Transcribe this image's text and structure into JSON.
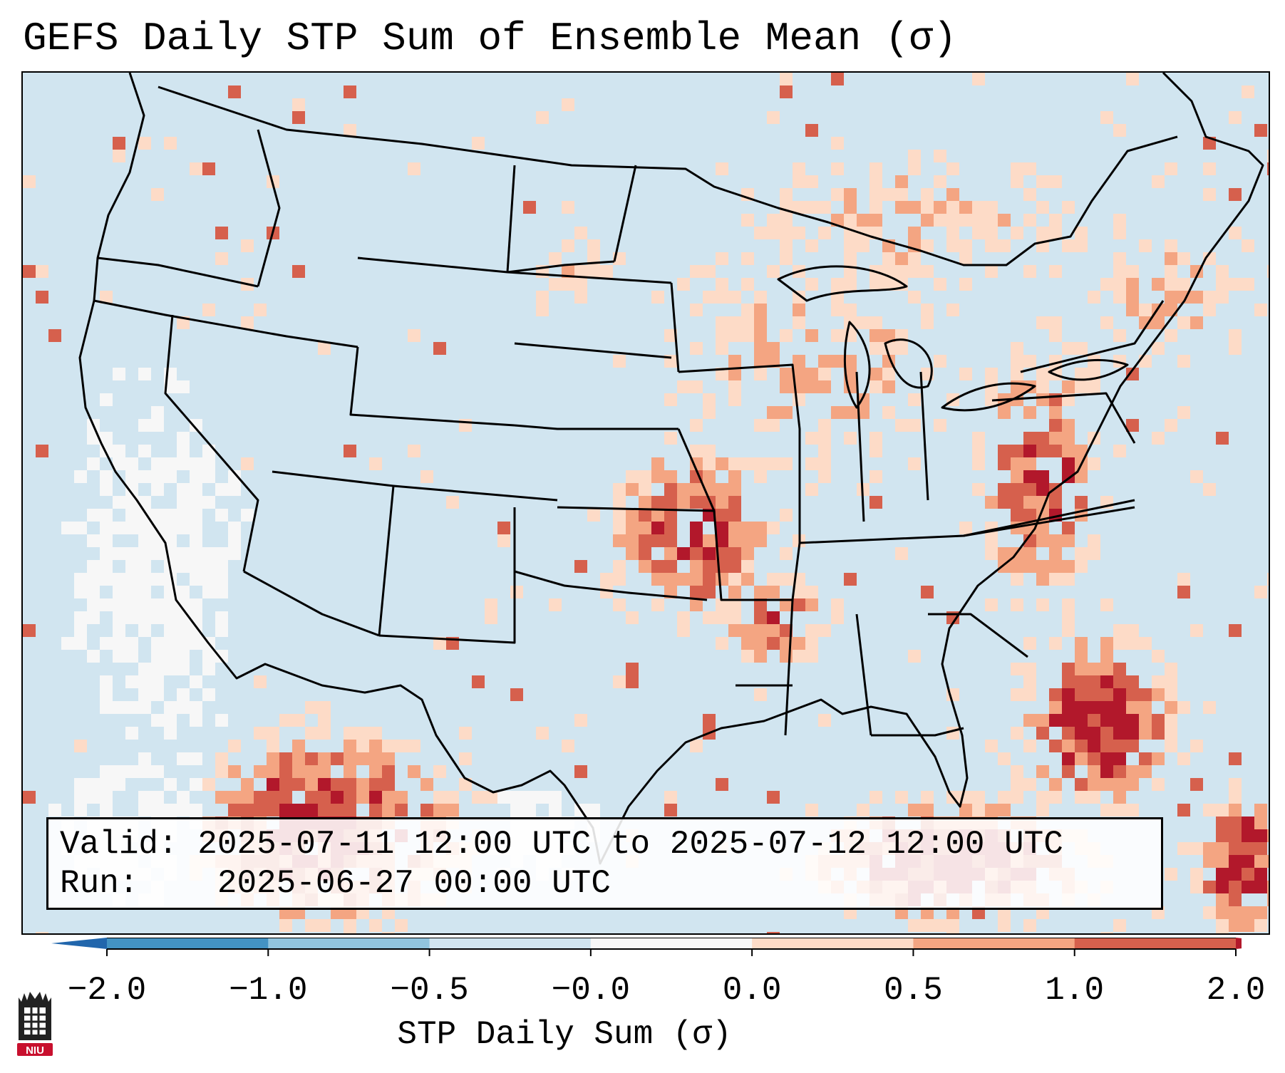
{
  "title": "GEFS Daily STP Sum of Ensemble Mean (σ)",
  "info": {
    "valid_label": "Valid:",
    "valid_value": "2025-07-11 12:00 UTC to 2025-07-12 12:00 UTC",
    "run_label": "Run:",
    "run_value": "2025-06-27 00:00 UTC"
  },
  "colorbar": {
    "label": "STP Daily Sum (σ)",
    "ticks": [
      "−2.0",
      "−1.0",
      "−0.5",
      "−0.0",
      "0.0",
      "0.5",
      "1.0",
      "2.0"
    ],
    "colors": [
      "#4393c3",
      "#92c5de",
      "#d1e5f0",
      "#f7f7f7",
      "#fddbc7",
      "#f4a582",
      "#d6604d"
    ],
    "under_color": "#2166ac",
    "over_color": "#b2182b"
  },
  "map": {
    "background_color": "#d1e5f0",
    "projection": "Lambert Conformal (CONUS)"
  },
  "logo": {
    "text": "NIU",
    "color": "#c8102e"
  }
}
